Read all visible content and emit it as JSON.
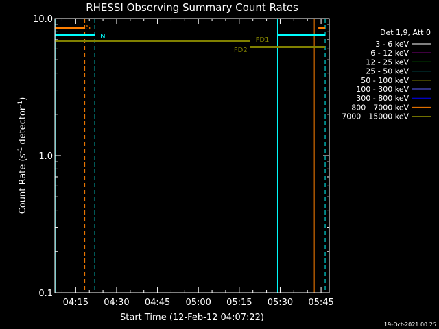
{
  "chart_data": {
    "type": "line",
    "title": "RHESSI Observing Summary Count Rates",
    "xlabel": "Start Time (12-Feb-12 04:07:22)",
    "ylabel_main": "Count Rate (s",
    "ylabel_sup1": "-1",
    "ylabel_mid": " detector",
    "ylabel_sup2": "-1",
    "ylabel_end": ")",
    "yscale": "log",
    "ylim": [
      0.1,
      10.0
    ],
    "xlim": [
      "04:07:22",
      "05:48:00"
    ],
    "x_ticks": [
      "04:15",
      "04:30",
      "04:45",
      "05:00",
      "05:15",
      "05:30",
      "05:45"
    ],
    "y_ticks": [
      "0.1",
      "1.0",
      "10.0"
    ],
    "legend_title": "Det 1,9, Att 0",
    "legend_position": "right",
    "legend": [
      {
        "label": "3 - 6 keV",
        "color": "#ffffff"
      },
      {
        "label": "6 - 12 keV",
        "color": "#ff00ff"
      },
      {
        "label": "12 - 25 keV",
        "color": "#00ff00"
      },
      {
        "label": "25 - 50 keV",
        "color": "#00ffff"
      },
      {
        "label": "50 - 100 keV",
        "color": "#ffff00"
      },
      {
        "label": "100 - 300 keV",
        "color": "#6060ff"
      },
      {
        "label": "300 - 800 keV",
        "color": "#0000ff"
      },
      {
        "label": "800 - 7000 keV",
        "color": "#ff7f00"
      },
      {
        "label": "7000 - 15000 keV",
        "color": "#808000"
      }
    ],
    "flag_bars": [
      {
        "label": "S",
        "color": "#ff7f00",
        "x_start": "04:07:22",
        "x_end": "04:18:20",
        "y": 8.5
      },
      {
        "label": "S",
        "color": "#ff7f00",
        "x_start": "05:44:00",
        "x_end": "05:46:30",
        "y": 8.5
      },
      {
        "label": "N",
        "color": "#00ffff",
        "x_start": "04:07:22",
        "x_end": "04:22:00",
        "y": 7.6
      },
      {
        "label": "N",
        "color": "#00ffff",
        "x_start": "05:29:00",
        "x_end": "05:46:30",
        "y": 7.6
      },
      {
        "label": "FD1",
        "color": "#808000",
        "x_start": "04:07:22",
        "x_end": "05:19:00",
        "y": 6.8
      },
      {
        "label": "FD2",
        "color": "#808000",
        "x_start": "05:19:00",
        "x_end": "05:46:30",
        "y": 6.2
      }
    ],
    "vertical_lines": [
      {
        "x": "04:07:40",
        "color": "#00ffff",
        "style": "solid"
      },
      {
        "x": "04:18:20",
        "color": "#ff7f00",
        "style": "dashed"
      },
      {
        "x": "04:22:00",
        "color": "#00ffff",
        "style": "dashed"
      },
      {
        "x": "05:29:00",
        "color": "#00ffff",
        "style": "solid"
      },
      {
        "x": "05:42:30",
        "color": "#ff7f00",
        "style": "solid"
      },
      {
        "x": "05:46:30",
        "color": "#00ffff",
        "style": "dashed"
      }
    ],
    "annotations": [
      {
        "text": "S",
        "color": "#ff7f00",
        "x": "04:18:50",
        "y": 8.6
      },
      {
        "text": "N",
        "color": "#00ffff",
        "x": "04:24:00",
        "y": 7.4
      },
      {
        "text": "FD1",
        "color": "#808000",
        "x": "05:21:00",
        "y": 7.0
      },
      {
        "text": "FD2",
        "color": "#808000",
        "x": "05:13:00",
        "y": 5.9
      }
    ],
    "timestamp": "19-Oct-2021 00:25"
  }
}
